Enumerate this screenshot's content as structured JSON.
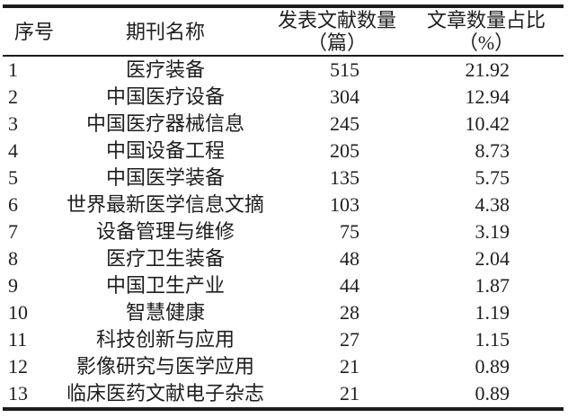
{
  "table": {
    "columns": {
      "index": {
        "label": "序号"
      },
      "journal": {
        "label": "期刊名称"
      },
      "count": {
        "label_line1": "发表文献数量",
        "label_line2": "（篇）"
      },
      "percent": {
        "label_line1": "文章数量占比",
        "label_line2": "（%）"
      }
    },
    "rows": [
      {
        "index": "1",
        "journal": "医疗装备",
        "count": "515",
        "percent": "21.92"
      },
      {
        "index": "2",
        "journal": "中国医疗设备",
        "count": "304",
        "percent": "12.94"
      },
      {
        "index": "3",
        "journal": "中国医疗器械信息",
        "count": "245",
        "percent": "10.42"
      },
      {
        "index": "4",
        "journal": "中国设备工程",
        "count": "205",
        "percent": "8.73"
      },
      {
        "index": "5",
        "journal": "中国医学装备",
        "count": "135",
        "percent": "5.75"
      },
      {
        "index": "6",
        "journal": "世界最新医学信息文摘",
        "count": "103",
        "percent": "4.38"
      },
      {
        "index": "7",
        "journal": "设备管理与维修",
        "count": "75",
        "percent": "3.19"
      },
      {
        "index": "8",
        "journal": "医疗卫生装备",
        "count": "48",
        "percent": "2.04"
      },
      {
        "index": "9",
        "journal": "中国卫生产业",
        "count": "44",
        "percent": "1.87"
      },
      {
        "index": "10",
        "journal": "智慧健康",
        "count": "28",
        "percent": "1.19"
      },
      {
        "index": "11",
        "journal": "科技创新与应用",
        "count": "27",
        "percent": "1.15"
      },
      {
        "index": "12",
        "journal": "影像研究与医学应用",
        "count": "21",
        "percent": "0.89"
      },
      {
        "index": "13",
        "journal": "临床医药文献电子杂志",
        "count": "21",
        "percent": "0.89"
      }
    ]
  },
  "colors": {
    "text": "#1e1e1e",
    "rule": "#1c1c1c",
    "background": "#ffffff"
  }
}
